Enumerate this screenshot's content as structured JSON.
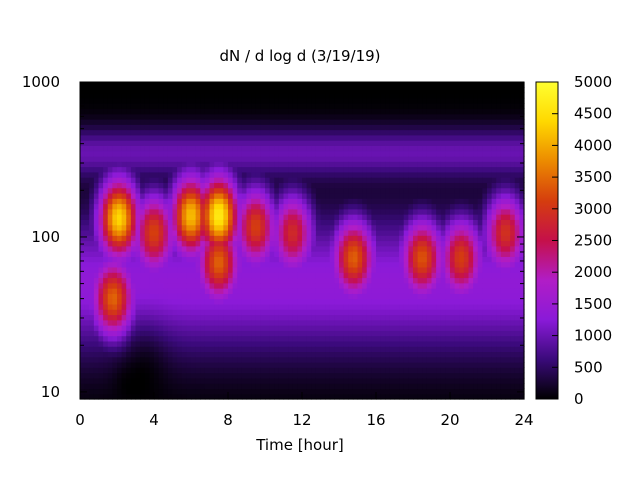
{
  "chart_data": {
    "type": "heatmap",
    "title": "dN / d log d (3/19/19)",
    "xlabel": "Time [hour]",
    "ylabel": "",
    "x_range": [
      0,
      24
    ],
    "x_ticks": [
      0,
      4,
      8,
      12,
      16,
      20,
      24
    ],
    "y_scale": "log",
    "y_range": [
      9.0,
      1000
    ],
    "y_ticks": [
      10,
      100,
      1000
    ],
    "color_range": [
      0,
      5000
    ],
    "color_ticks": [
      0,
      500,
      1000,
      1500,
      2000,
      2500,
      3000,
      3500,
      4000,
      4500,
      5000
    ],
    "colormap": [
      "#000000",
      "#3a0a7a",
      "#8a1ad8",
      "#b11dc6",
      "#c5104a",
      "#d53d0e",
      "#ec8a00",
      "#ffd800",
      "#ffff30"
    ],
    "grid": false,
    "legend": "colorbar-right",
    "hotspots": [
      {
        "hour": 2.1,
        "diameter": 135,
        "value": 4200
      },
      {
        "hour": 1.8,
        "diameter": 40,
        "value": 3000
      },
      {
        "hour": 4.0,
        "diameter": 110,
        "value": 2900
      },
      {
        "hour": 6.0,
        "diameter": 140,
        "value": 4000
      },
      {
        "hour": 7.5,
        "diameter": 140,
        "value": 4500
      },
      {
        "hour": 7.5,
        "diameter": 70,
        "value": 3000
      },
      {
        "hour": 9.5,
        "diameter": 120,
        "value": 2900
      },
      {
        "hour": 11.5,
        "diameter": 110,
        "value": 2600
      },
      {
        "hour": 14.8,
        "diameter": 75,
        "value": 3000
      },
      {
        "hour": 18.5,
        "diameter": 75,
        "value": 2900
      },
      {
        "hour": 20.6,
        "diameter": 75,
        "value": 2700
      },
      {
        "hour": 23.0,
        "diameter": 110,
        "value": 2700
      }
    ]
  }
}
